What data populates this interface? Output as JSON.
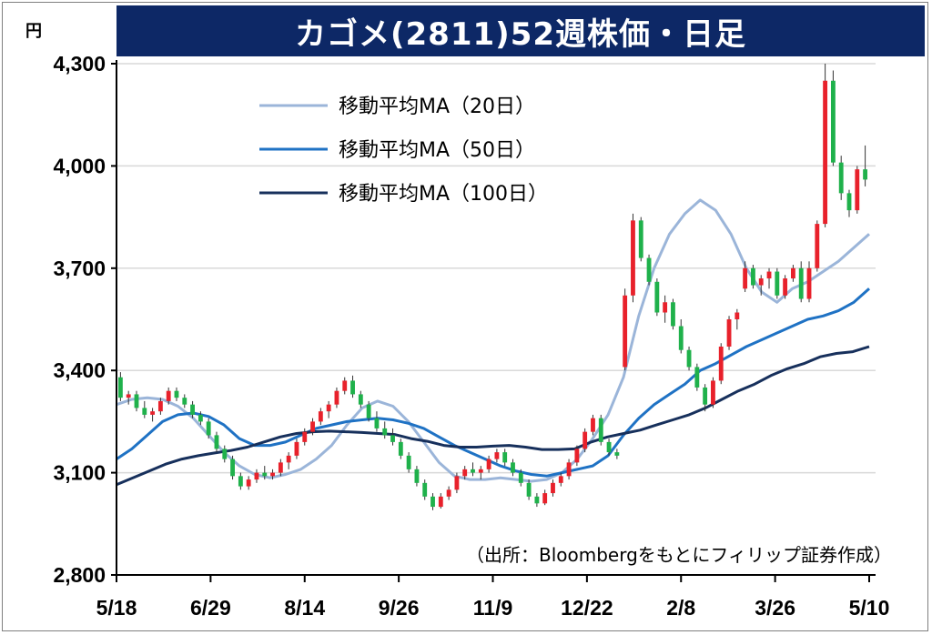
{
  "unit": "円",
  "title": "カゴメ(2811)52週株価・日足",
  "source_note": "（出所：Bloombergをもとにフィリップ証券作成）",
  "colors": {
    "up": "#e8212b",
    "down": "#1fb14b",
    "ma20": "#9bb5d9",
    "ma50": "#1f72c4",
    "ma100": "#17305c",
    "title_bg": "#0d2866",
    "grid": "#d9d9d9"
  },
  "chart_data": {
    "type": "candlestick",
    "ylim": [
      2800,
      4300
    ],
    "yticks": [
      "2,800",
      "3,100",
      "3,400",
      "3,700",
      "4,000",
      "4,300"
    ],
    "ytick_values": [
      2800,
      3100,
      3400,
      3700,
      4000,
      4300
    ],
    "xticks": [
      "5/18",
      "6/29",
      "8/14",
      "9/26",
      "11/9",
      "12/22",
      "2/8",
      "3/26",
      "5/10"
    ],
    "grid": true,
    "legend_position": "top-left",
    "series": [
      {
        "name": "移動平均MA（20日）",
        "color": "#9bb5d9",
        "values": [
          3300,
          3315,
          3320,
          3315,
          3295,
          3260,
          3210,
          3160,
          3120,
          3095,
          3085,
          3095,
          3110,
          3140,
          3180,
          3240,
          3290,
          3310,
          3295,
          3250,
          3190,
          3130,
          3090,
          3080,
          3080,
          3085,
          3080,
          3075,
          3080,
          3100,
          3140,
          3200,
          3270,
          3380,
          3560,
          3700,
          3800,
          3860,
          3900,
          3870,
          3800,
          3700,
          3630,
          3600,
          3640,
          3660,
          3690,
          3720,
          3760,
          3800
        ]
      },
      {
        "name": "移動平均MA（50日）",
        "color": "#1f72c4",
        "values": [
          3140,
          3170,
          3210,
          3250,
          3270,
          3275,
          3265,
          3240,
          3200,
          3180,
          3180,
          3190,
          3210,
          3230,
          3240,
          3250,
          3255,
          3260,
          3255,
          3245,
          3230,
          3205,
          3180,
          3160,
          3140,
          3120,
          3105,
          3095,
          3090,
          3100,
          3110,
          3120,
          3150,
          3210,
          3260,
          3300,
          3330,
          3360,
          3400,
          3420,
          3445,
          3470,
          3490,
          3510,
          3530,
          3550,
          3560,
          3575,
          3600,
          3640
        ]
      },
      {
        "name": "移動平均MA（100日）",
        "color": "#17305c",
        "values": [
          3065,
          3085,
          3105,
          3125,
          3140,
          3150,
          3158,
          3165,
          3175,
          3190,
          3205,
          3215,
          3220,
          3222,
          3220,
          3218,
          3215,
          3212,
          3200,
          3192,
          3180,
          3175,
          3175,
          3178,
          3180,
          3175,
          3168,
          3168,
          3170,
          3190,
          3205,
          3215,
          3225,
          3240,
          3255,
          3270,
          3290,
          3315,
          3340,
          3360,
          3385,
          3405,
          3420,
          3440,
          3450,
          3455,
          3470
        ]
      }
    ],
    "candles": [
      [
        3380,
        3395,
        3310,
        3320
      ],
      [
        3320,
        3340,
        3300,
        3330
      ],
      [
        3330,
        3340,
        3280,
        3290
      ],
      [
        3290,
        3310,
        3260,
        3270
      ],
      [
        3270,
        3290,
        3250,
        3280
      ],
      [
        3280,
        3320,
        3270,
        3310
      ],
      [
        3310,
        3350,
        3300,
        3340
      ],
      [
        3340,
        3350,
        3310,
        3320
      ],
      [
        3320,
        3330,
        3290,
        3300
      ],
      [
        3300,
        3310,
        3260,
        3270
      ],
      [
        3270,
        3280,
        3240,
        3250
      ],
      [
        3250,
        3260,
        3200,
        3210
      ],
      [
        3210,
        3220,
        3160,
        3170
      ],
      [
        3170,
        3180,
        3130,
        3140
      ],
      [
        3140,
        3150,
        3080,
        3090
      ],
      [
        3090,
        3100,
        3050,
        3060
      ],
      [
        3060,
        3090,
        3050,
        3080
      ],
      [
        3080,
        3110,
        3070,
        3100
      ],
      [
        3100,
        3120,
        3080,
        3090
      ],
      [
        3090,
        3110,
        3080,
        3100
      ],
      [
        3100,
        3140,
        3090,
        3130
      ],
      [
        3130,
        3160,
        3110,
        3150
      ],
      [
        3150,
        3200,
        3140,
        3190
      ],
      [
        3190,
        3230,
        3180,
        3220
      ],
      [
        3220,
        3260,
        3210,
        3250
      ],
      [
        3250,
        3290,
        3240,
        3280
      ],
      [
        3280,
        3310,
        3260,
        3300
      ],
      [
        3300,
        3350,
        3290,
        3340
      ],
      [
        3340,
        3380,
        3330,
        3370
      ],
      [
        3370,
        3385,
        3320,
        3330
      ],
      [
        3330,
        3340,
        3290,
        3300
      ],
      [
        3300,
        3310,
        3250,
        3260
      ],
      [
        3260,
        3280,
        3220,
        3230
      ],
      [
        3230,
        3250,
        3200,
        3210
      ],
      [
        3210,
        3230,
        3180,
        3190
      ],
      [
        3190,
        3200,
        3140,
        3150
      ],
      [
        3150,
        3160,
        3100,
        3110
      ],
      [
        3110,
        3120,
        3060,
        3070
      ],
      [
        3070,
        3080,
        3020,
        3030
      ],
      [
        3030,
        3040,
        2990,
        3000
      ],
      [
        3000,
        3040,
        2995,
        3030
      ],
      [
        3030,
        3060,
        3020,
        3050
      ],
      [
        3050,
        3100,
        3040,
        3090
      ],
      [
        3090,
        3120,
        3080,
        3110
      ],
      [
        3110,
        3130,
        3090,
        3100
      ],
      [
        3100,
        3120,
        3080,
        3110
      ],
      [
        3110,
        3150,
        3100,
        3140
      ],
      [
        3140,
        3170,
        3130,
        3160
      ],
      [
        3160,
        3170,
        3120,
        3130
      ],
      [
        3130,
        3140,
        3090,
        3100
      ],
      [
        3100,
        3110,
        3060,
        3070
      ],
      [
        3070,
        3080,
        3020,
        3030
      ],
      [
        3030,
        3040,
        3000,
        3010
      ],
      [
        3010,
        3050,
        3005,
        3040
      ],
      [
        3040,
        3080,
        3030,
        3070
      ],
      [
        3070,
        3100,
        3060,
        3090
      ],
      [
        3090,
        3140,
        3080,
        3130
      ],
      [
        3130,
        3180,
        3120,
        3170
      ],
      [
        3170,
        3230,
        3160,
        3220
      ],
      [
        3220,
        3270,
        3210,
        3260
      ],
      [
        3260,
        3270,
        3180,
        3190
      ],
      [
        3190,
        3200,
        3150,
        3160
      ],
      [
        3160,
        3170,
        3140,
        3150
      ],
      [
        3410,
        3640,
        3400,
        3620
      ],
      [
        3620,
        3860,
        3600,
        3840
      ],
      [
        3840,
        3850,
        3720,
        3730
      ],
      [
        3730,
        3740,
        3650,
        3660
      ],
      [
        3660,
        3670,
        3560,
        3570
      ],
      [
        3570,
        3620,
        3540,
        3600
      ],
      [
        3600,
        3610,
        3520,
        3530
      ],
      [
        3530,
        3550,
        3450,
        3460
      ],
      [
        3460,
        3470,
        3400,
        3410
      ],
      [
        3410,
        3420,
        3340,
        3350
      ],
      [
        3350,
        3360,
        3280,
        3300
      ],
      [
        3300,
        3380,
        3290,
        3370
      ],
      [
        3370,
        3480,
        3360,
        3470
      ],
      [
        3470,
        3560,
        3460,
        3550
      ],
      [
        3550,
        3580,
        3520,
        3570
      ],
      [
        3640,
        3720,
        3630,
        3700
      ],
      [
        3700,
        3710,
        3640,
        3650
      ],
      [
        3650,
        3680,
        3620,
        3670
      ],
      [
        3670,
        3700,
        3640,
        3690
      ],
      [
        3690,
        3700,
        3610,
        3620
      ],
      [
        3620,
        3680,
        3610,
        3670
      ],
      [
        3670,
        3710,
        3660,
        3700
      ],
      [
        3700,
        3720,
        3600,
        3610
      ],
      [
        3610,
        3720,
        3600,
        3700
      ],
      [
        3700,
        3840,
        3690,
        3830
      ],
      [
        3830,
        4300,
        3820,
        4250
      ],
      [
        4250,
        4280,
        4000,
        4010
      ],
      [
        4010,
        4030,
        3900,
        3920
      ],
      [
        3920,
        3930,
        3850,
        3870
      ],
      [
        3870,
        4000,
        3860,
        3990
      ],
      [
        3990,
        4060,
        3940,
        3960
      ]
    ]
  }
}
